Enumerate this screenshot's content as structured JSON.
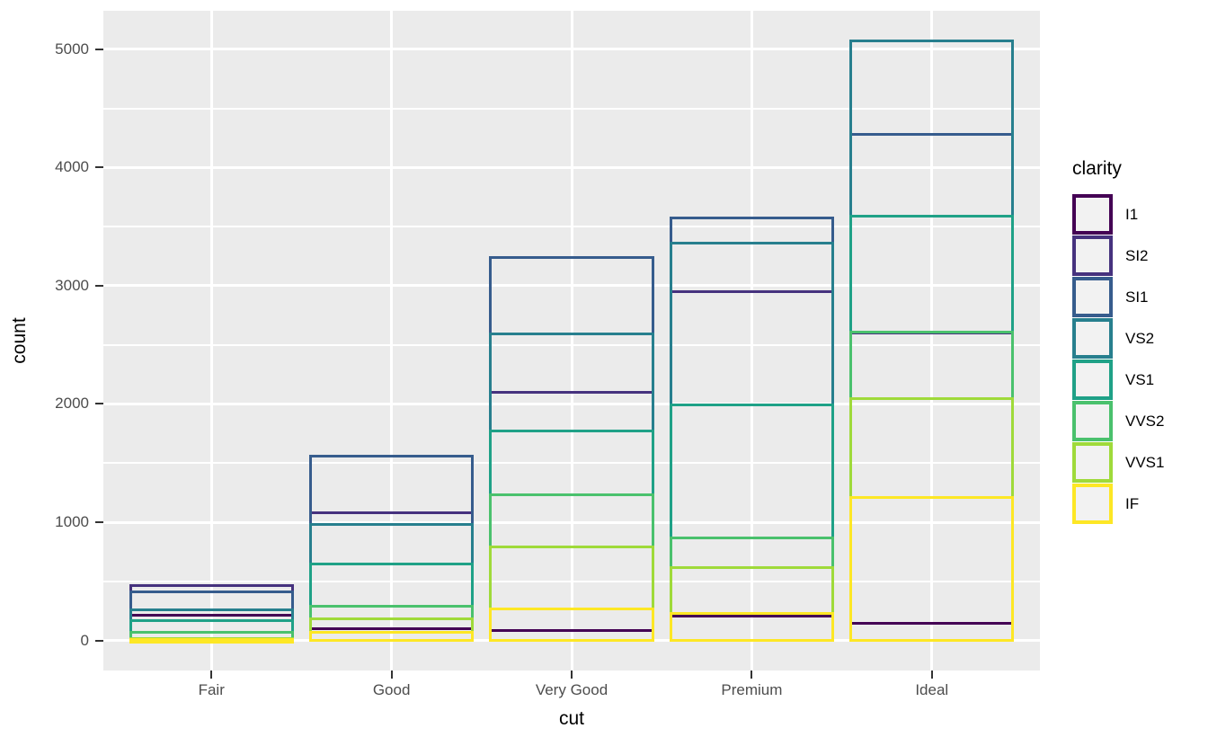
{
  "chart_data": {
    "type": "bar",
    "bar_style": "outline",
    "position": "identity",
    "title": "",
    "xlabel": "cut",
    "ylabel": "count",
    "legend_title": "clarity",
    "legend_position": "right",
    "categories": [
      "Fair",
      "Good",
      "Very Good",
      "Premium",
      "Ideal"
    ],
    "series": [
      {
        "name": "I1",
        "color": "#440154",
        "values": [
          210,
          96,
          84,
          205,
          146
        ]
      },
      {
        "name": "SI2",
        "color": "#46327E",
        "values": [
          466,
          1081,
          2100,
          2949,
          2598
        ]
      },
      {
        "name": "SI1",
        "color": "#365C8D",
        "values": [
          408,
          1560,
          3240,
          3575,
          4282
        ]
      },
      {
        "name": "VS2",
        "color": "#277F8E",
        "values": [
          261,
          978,
          2591,
          3357,
          5071
        ]
      },
      {
        "name": "VS1",
        "color": "#1FA187",
        "values": [
          170,
          648,
          1775,
          1989,
          3589
        ]
      },
      {
        "name": "VVS2",
        "color": "#4AC16D",
        "values": [
          69,
          286,
          1235,
          870,
          2606
        ]
      },
      {
        "name": "VVS1",
        "color": "#9FDA3A",
        "values": [
          17,
          186,
          789,
          616,
          2047
        ]
      },
      {
        "name": "IF",
        "color": "#FDE725",
        "values": [
          9,
          71,
          268,
          230,
          1212
        ]
      }
    ],
    "y_ticks": [
      0,
      1000,
      2000,
      3000,
      4000,
      5000
    ],
    "y_tick_labels": [
      "0",
      "1000",
      "2000",
      "3000",
      "4000",
      "5000"
    ],
    "y_minor_ticks": [
      500,
      1500,
      2500,
      3500,
      4500
    ],
    "ylim": [
      -253.6,
      5324.6
    ],
    "grid": true,
    "panel_bg": "#EBEBEB",
    "grid_color": "#FFFFFF",
    "tick_color": "#333333",
    "tick_label_color": "#4D4D4D",
    "axis_title_color": "#000000",
    "legend_key_bg": "#F2F2F2"
  }
}
